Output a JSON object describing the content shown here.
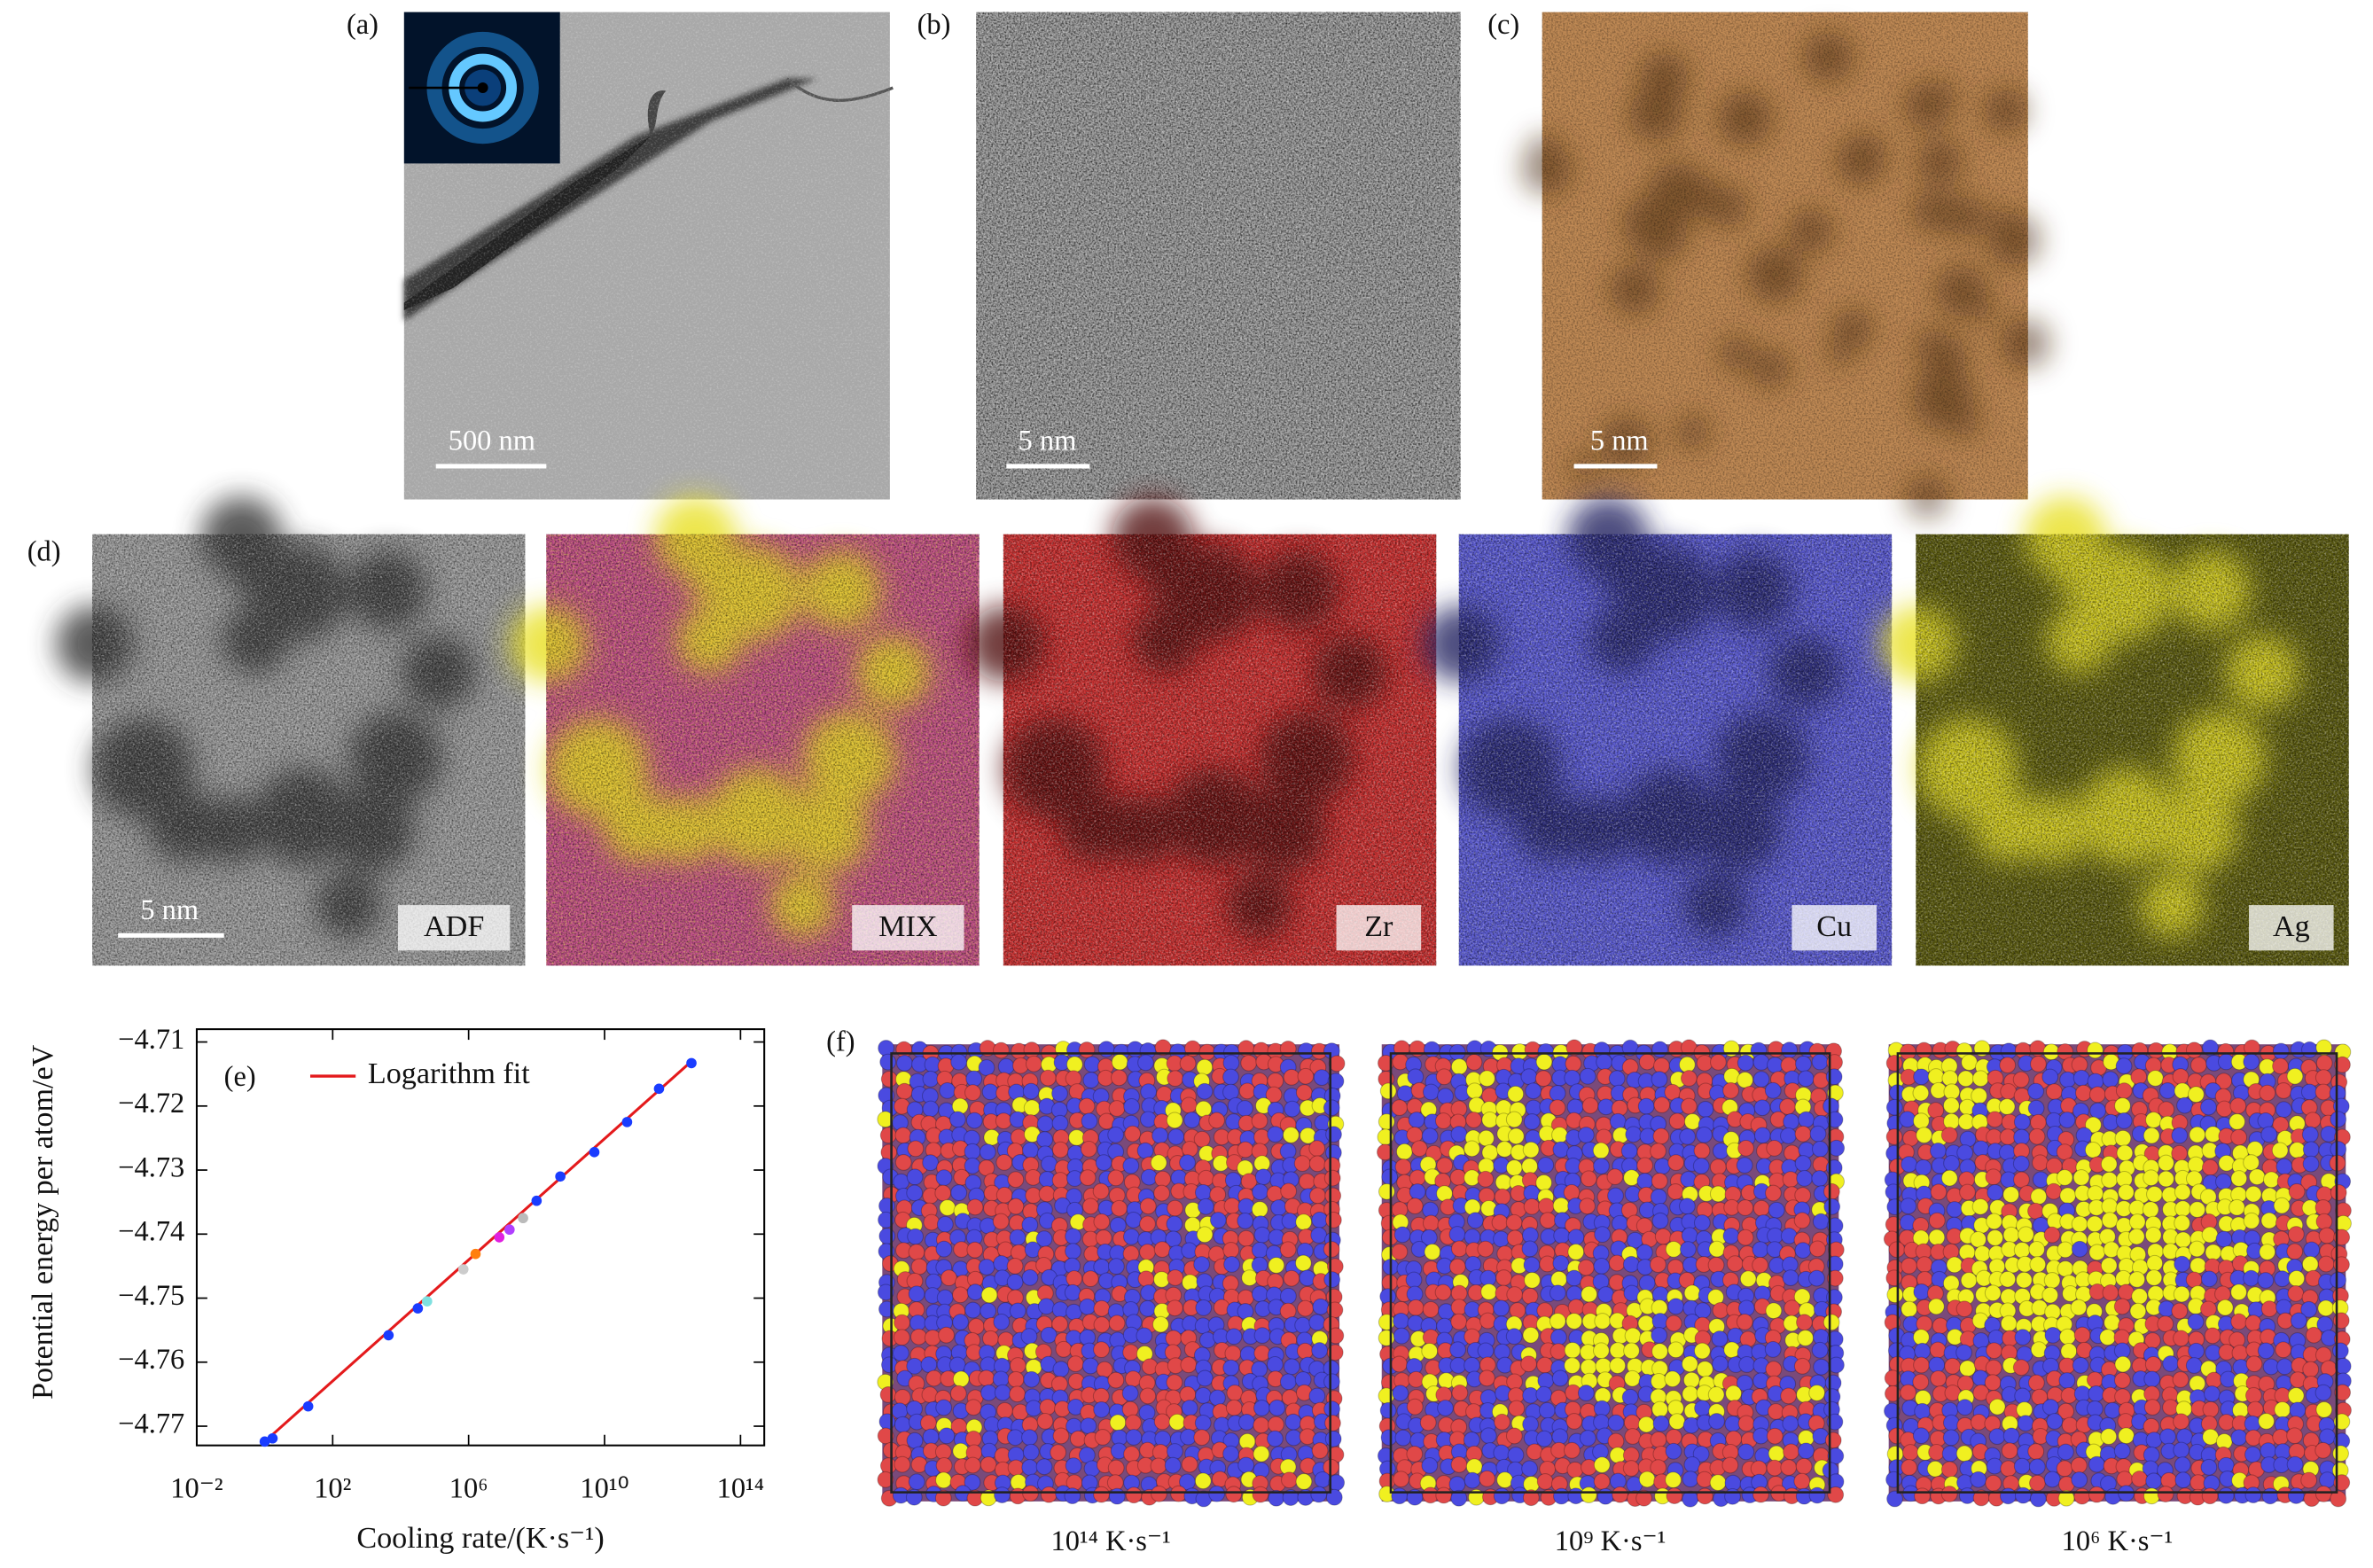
{
  "figure": {
    "panel_labels": {
      "a": "(a)",
      "b": "(b)",
      "c": "(c)",
      "d": "(d)",
      "f": "(f)"
    },
    "scale_bars": {
      "a": "500 nm",
      "b": "5 nm",
      "c": "5 nm",
      "d": "5 nm"
    },
    "map_labels": [
      "ADF",
      "MIX",
      "Zr",
      "Cu",
      "Ag"
    ],
    "simulation_captions": [
      "10¹⁴ K·s⁻¹",
      "10⁹ K·s⁻¹",
      "10⁶ K·s⁻¹"
    ]
  },
  "chart_data": {
    "type": "scatter",
    "panel_label": "(e)",
    "xlabel": "Cooling rate/(K·s⁻¹)",
    "ylabel": "Potential energy per atom/eV",
    "xscale": "log",
    "xlim": [
      0.01,
      500000000000000.0
    ],
    "ylim": [
      -4.773,
      -4.708
    ],
    "xticks": [
      {
        "value": 0.01,
        "label": "10⁻²"
      },
      {
        "value": 100,
        "label": "10²"
      },
      {
        "value": 1000000,
        "label": "10⁶"
      },
      {
        "value": 10000000000,
        "label": "10¹⁰"
      },
      {
        "value": 100000000000000,
        "label": "10¹⁴"
      }
    ],
    "yticks": [
      {
        "value": -4.71,
        "label": "−4.71"
      },
      {
        "value": -4.72,
        "label": "−4.72"
      },
      {
        "value": -4.73,
        "label": "−4.73"
      },
      {
        "value": -4.74,
        "label": "−4.74"
      },
      {
        "value": -4.75,
        "label": "−4.75"
      },
      {
        "value": -4.76,
        "label": "−4.76"
      },
      {
        "value": -4.77,
        "label": "−4.77"
      }
    ],
    "legend": "upper left",
    "series": [
      {
        "name": "Logarithm fit",
        "type": "line",
        "color": "#e41a1c",
        "x": [
          1,
          4000000000000
        ],
        "values": [
          -4.7724,
          -4.7128
        ]
      },
      {
        "type": "scatter",
        "color": "#1a3cff",
        "x": [
          1,
          1.7,
          19,
          4400,
          32000,
          100000000,
          500000000,
          5000000000,
          46000000000,
          400000000000,
          3600000000000
        ],
        "values": [
          -4.7724,
          -4.7719,
          -4.7669,
          -4.7558,
          -4.7516,
          -4.7348,
          -4.731,
          -4.7272,
          -4.7225,
          -4.7173,
          -4.7133
        ]
      },
      {
        "type": "scatter",
        "colors": [
          "#7fe0e0",
          "#cccccc",
          "#ff7f0e",
          "#e020e0",
          "#b040ff",
          "#bbbbbb"
        ],
        "x": [
          60000,
          700000,
          1600000,
          8000000,
          16000000,
          40000000
        ],
        "values": [
          -4.7505,
          -4.7455,
          -4.7431,
          -4.7405,
          -4.7393,
          -4.7375
        ]
      }
    ]
  }
}
